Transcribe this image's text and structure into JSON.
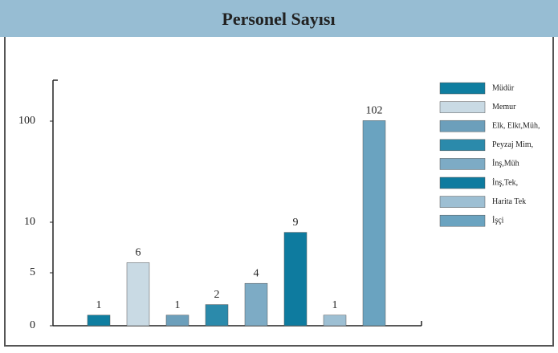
{
  "chart_data": {
    "type": "bar",
    "title": "Personel Sayısı",
    "categories": [
      "Müdür",
      "Memur",
      "Elk, Elkt,Müh,",
      "Peyzaj Mim,",
      "İnş,Müh",
      "İnş,Tek,",
      "Harita Tek",
      "İşçi"
    ],
    "values": [
      1,
      6,
      1,
      2,
      4,
      9,
      1,
      102
    ],
    "colors": [
      "#0f7ea0",
      "#c9dae4",
      "#6c9fbb",
      "#2b8aab",
      "#7dabc5",
      "#0e7b9f",
      "#9dbfd3",
      "#6aa3c0"
    ],
    "ylim": [
      0,
      250
    ],
    "yticks": [
      0,
      5,
      10,
      100
    ],
    "y_scale": "piecewise",
    "legend": "right"
  }
}
